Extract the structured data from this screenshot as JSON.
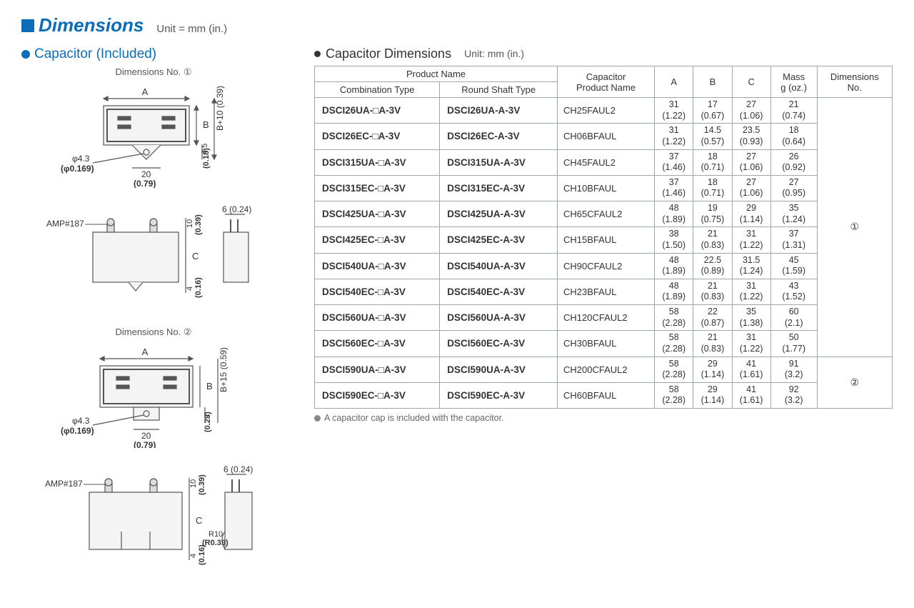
{
  "title": "Dimensions",
  "unit_label": "Unit = mm (in.)",
  "left": {
    "section_title": "Capacitor (Included)",
    "diagram1_title": "Dimensions No. ①",
    "diagram2_title": "Dimensions No. ②",
    "labels": {
      "A": "A",
      "B": "B",
      "C": "C",
      "amp": "AMP#187",
      "phi43": "φ4.3",
      "phi43_in": "(φ0.169)",
      "d20": "20",
      "d20_in": "(0.79)",
      "d45": "4.5",
      "d45_in": "(0.18)",
      "bplus10": "B+10 (0.39)",
      "d10": "10",
      "d10_in": "(0.39)",
      "d6": "6 (0.24)",
      "d4": "4",
      "d4_in": "(0.16)",
      "d7": "7",
      "d7_in": "(0.28)",
      "bplus15": "B+15 (0.59)",
      "r10": "R10",
      "r10_in": "(R0.39)"
    }
  },
  "right": {
    "section_title": "Capacitor Dimensions",
    "unit": "Unit: mm (in.)",
    "headers": {
      "product_name": "Product Name",
      "combo": "Combination Type",
      "round": "Round Shaft Type",
      "cap_name": "Capacitor\nProduct Name",
      "A": "A",
      "B": "B",
      "C": "C",
      "mass": "Mass\ng (oz.)",
      "dim_no": "Dimensions\nNo."
    },
    "dim_no_1": "①",
    "dim_no_2": "②",
    "rows": [
      {
        "combo": "DSCI26UA-□A-3V",
        "round": "DSCI26UA-A-3V",
        "cap": "CH25FAUL2",
        "A": [
          "31",
          "(1.22)"
        ],
        "B": [
          "17",
          "(0.67)"
        ],
        "C": [
          "27",
          "(1.06)"
        ],
        "mass": [
          "21",
          "(0.74)"
        ],
        "group": 1
      },
      {
        "combo": "DSCI26EC-□A-3V",
        "round": "DSCI26EC-A-3V",
        "cap": "CH06BFAUL",
        "A": [
          "31",
          "(1.22)"
        ],
        "B": [
          "14.5",
          "(0.57)"
        ],
        "C": [
          "23.5",
          "(0.93)"
        ],
        "mass": [
          "18",
          "(0.64)"
        ],
        "group": 1
      },
      {
        "combo": "DSCI315UA-□A-3V",
        "round": "DSCI315UA-A-3V",
        "cap": "CH45FAUL2",
        "A": [
          "37",
          "(1.46)"
        ],
        "B": [
          "18",
          "(0.71)"
        ],
        "C": [
          "27",
          "(1.06)"
        ],
        "mass": [
          "26",
          "(0.92)"
        ],
        "group": 1
      },
      {
        "combo": "DSCI315EC-□A-3V",
        "round": "DSCI315EC-A-3V",
        "cap": "CH10BFAUL",
        "A": [
          "37",
          "(1.46)"
        ],
        "B": [
          "18",
          "(0.71)"
        ],
        "C": [
          "27",
          "(1.06)"
        ],
        "mass": [
          "27",
          "(0.95)"
        ],
        "group": 1
      },
      {
        "combo": "DSCI425UA-□A-3V",
        "round": "DSCI425UA-A-3V",
        "cap": "CH65CFAUL2",
        "A": [
          "48",
          "(1.89)"
        ],
        "B": [
          "19",
          "(0.75)"
        ],
        "C": [
          "29",
          "(1.14)"
        ],
        "mass": [
          "35",
          "(1.24)"
        ],
        "group": 1
      },
      {
        "combo": "DSCI425EC-□A-3V",
        "round": "DSCI425EC-A-3V",
        "cap": "CH15BFAUL",
        "A": [
          "38",
          "(1.50)"
        ],
        "B": [
          "21",
          "(0.83)"
        ],
        "C": [
          "31",
          "(1.22)"
        ],
        "mass": [
          "37",
          "(1.31)"
        ],
        "group": 1
      },
      {
        "combo": "DSCI540UA-□A-3V",
        "round": "DSCI540UA-A-3V",
        "cap": "CH90CFAUL2",
        "A": [
          "48",
          "(1.89)"
        ],
        "B": [
          "22.5",
          "(0.89)"
        ],
        "C": [
          "31.5",
          "(1.24)"
        ],
        "mass": [
          "45",
          "(1.59)"
        ],
        "group": 1
      },
      {
        "combo": "DSCI540EC-□A-3V",
        "round": "DSCI540EC-A-3V",
        "cap": "CH23BFAUL",
        "A": [
          "48",
          "(1.89)"
        ],
        "B": [
          "21",
          "(0.83)"
        ],
        "C": [
          "31",
          "(1.22)"
        ],
        "mass": [
          "43",
          "(1.52)"
        ],
        "group": 1
      },
      {
        "combo": "DSCI560UA-□A-3V",
        "round": "DSCI560UA-A-3V",
        "cap": "CH120CFAUL2",
        "A": [
          "58",
          "(2.28)"
        ],
        "B": [
          "22",
          "(0.87)"
        ],
        "C": [
          "35",
          "(1.38)"
        ],
        "mass": [
          "60",
          "(2.1)"
        ],
        "group": 1
      },
      {
        "combo": "DSCI560EC-□A-3V",
        "round": "DSCI560EC-A-3V",
        "cap": "CH30BFAUL",
        "A": [
          "58",
          "(2.28)"
        ],
        "B": [
          "21",
          "(0.83)"
        ],
        "C": [
          "31",
          "(1.22)"
        ],
        "mass": [
          "50",
          "(1.77)"
        ],
        "group": 1
      },
      {
        "combo": "DSCI590UA-□A-3V",
        "round": "DSCI590UA-A-3V",
        "cap": "CH200CFAUL2",
        "A": [
          "58",
          "(2.28)"
        ],
        "B": [
          "29",
          "(1.14)"
        ],
        "C": [
          "41",
          "(1.61)"
        ],
        "mass": [
          "91",
          "(3.2)"
        ],
        "group": 2
      },
      {
        "combo": "DSCI590EC-□A-3V",
        "round": "DSCI590EC-A-3V",
        "cap": "CH60BFAUL",
        "A": [
          "58",
          "(2.28)"
        ],
        "B": [
          "29",
          "(1.14)"
        ],
        "C": [
          "41",
          "(1.61)"
        ],
        "mass": [
          "92",
          "(3.2)"
        ],
        "group": 2
      }
    ],
    "footnote": "A capacitor cap is included with the capacitor."
  },
  "style": {
    "accent": "#0b6db7",
    "border": "#9aa8b3",
    "diagram_stroke": "#555",
    "diagram_fill": "#f4f4f4"
  }
}
